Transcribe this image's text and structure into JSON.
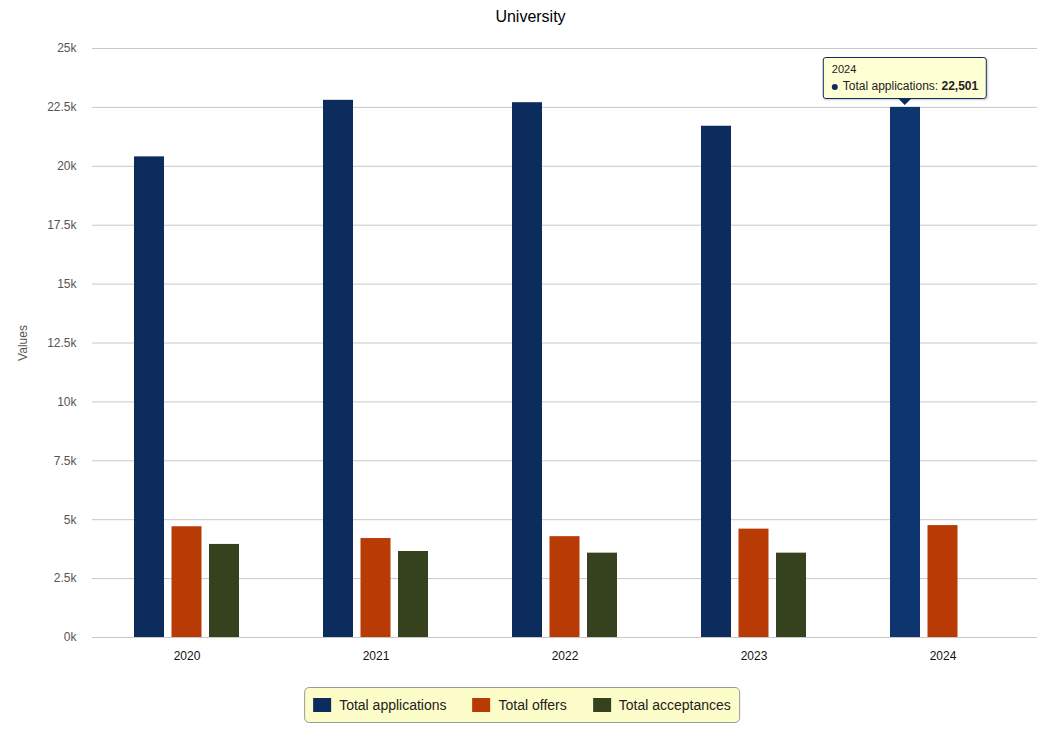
{
  "chart_data": {
    "type": "bar",
    "title": "University",
    "y_label": "Values",
    "categories": [
      "2020",
      "2021",
      "2022",
      "2023",
      "2024"
    ],
    "series": [
      {
        "name": "Total applications",
        "color": "#0c2c5e",
        "values": [
          20400,
          22800,
          22700,
          21700,
          22501
        ]
      },
      {
        "name": "Total offers",
        "color": "#b83a04",
        "values": [
          4700,
          4200,
          4280,
          4600,
          4750
        ]
      },
      {
        "name": "Total acceptances",
        "color": "#36421e",
        "values": [
          3950,
          3650,
          3580,
          3580,
          null
        ]
      }
    ],
    "ylim": [
      0,
      25000
    ],
    "yticks": [
      {
        "value": 0,
        "label": "0k"
      },
      {
        "value": 2500,
        "label": "2.5k"
      },
      {
        "value": 5000,
        "label": "5k"
      },
      {
        "value": 7500,
        "label": "7.5k"
      },
      {
        "value": 10000,
        "label": "10k"
      },
      {
        "value": 12500,
        "label": "12.5k"
      },
      {
        "value": 15000,
        "label": "15k"
      },
      {
        "value": 17500,
        "label": "17.5k"
      },
      {
        "value": 20000,
        "label": "20k"
      },
      {
        "value": 22500,
        "label": "22.5k"
      },
      {
        "value": 25000,
        "label": "25k"
      }
    ],
    "grid": true,
    "legend": "bottom",
    "annotations": [
      {
        "category": "2024",
        "series": "Total applications",
        "text": "Total applications: 22,501"
      }
    ]
  }
}
